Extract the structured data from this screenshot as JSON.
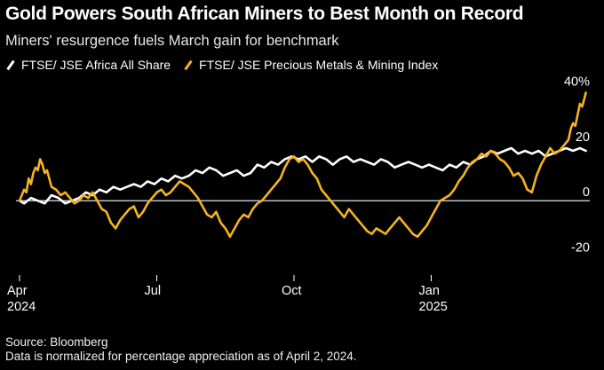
{
  "colors": {
    "background": "#000000",
    "all_share": "#ffffff",
    "precious_metals": "#f5b41e",
    "text": "#ffffff"
  },
  "header": {
    "title": "Gold Powers South African Miners to Best Month on Record",
    "subtitle": "Miners' resurgence fuels March gain for benchmark"
  },
  "footer": {
    "source": "Source: Bloomberg",
    "note": "Data is normalized for percentage appreciation as of April 2, 2024."
  },
  "chart_data": {
    "type": "line",
    "title": "Gold Powers South African Miners to Best Month on Record",
    "subtitle": "Miners' resurgence fuels March gain for benchmark",
    "xlabel": "",
    "ylabel": "",
    "x_range": [
      0,
      12
    ],
    "ylim": [
      -23,
      43
    ],
    "y_ticks": [
      {
        "value": 40,
        "label": "40%"
      },
      {
        "value": 20,
        "label": "20"
      },
      {
        "value": 0,
        "label": "0"
      },
      {
        "value": -20,
        "label": "-20"
      }
    ],
    "x_ticks": [
      {
        "value": 0,
        "label": "Apr",
        "sublabel": "2024"
      },
      {
        "value": 3,
        "label": "Jul",
        "sublabel": ""
      },
      {
        "value": 6,
        "label": "Oct",
        "sublabel": ""
      },
      {
        "value": 9,
        "label": "Jan",
        "sublabel": "2025"
      }
    ],
    "zero_line": true,
    "legend_position": "top-left",
    "series": [
      {
        "name": "FTSE/ JSE Africa All Share",
        "color": "#ffffff",
        "points": [
          [
            0.0,
            0
          ],
          [
            0.1,
            -1
          ],
          [
            0.25,
            1
          ],
          [
            0.4,
            0
          ],
          [
            0.55,
            -1
          ],
          [
            0.7,
            2
          ],
          [
            0.85,
            1
          ],
          [
            1.0,
            -1
          ],
          [
            1.15,
            0
          ],
          [
            1.3,
            1
          ],
          [
            1.45,
            3
          ],
          [
            1.6,
            2
          ],
          [
            1.75,
            4
          ],
          [
            1.9,
            3
          ],
          [
            2.05,
            5
          ],
          [
            2.2,
            4
          ],
          [
            2.35,
            5
          ],
          [
            2.5,
            6
          ],
          [
            2.65,
            5
          ],
          [
            2.8,
            7
          ],
          [
            2.95,
            6
          ],
          [
            3.1,
            8
          ],
          [
            3.25,
            7
          ],
          [
            3.4,
            9
          ],
          [
            3.55,
            8
          ],
          [
            3.7,
            9
          ],
          [
            3.85,
            11
          ],
          [
            4.0,
            10
          ],
          [
            4.15,
            12
          ],
          [
            4.3,
            11
          ],
          [
            4.45,
            9
          ],
          [
            4.6,
            10
          ],
          [
            4.75,
            11
          ],
          [
            4.9,
            9
          ],
          [
            5.05,
            10
          ],
          [
            5.2,
            13
          ],
          [
            5.35,
            12
          ],
          [
            5.5,
            14
          ],
          [
            5.65,
            13
          ],
          [
            5.8,
            15
          ],
          [
            5.95,
            16
          ],
          [
            6.1,
            15
          ],
          [
            6.25,
            16
          ],
          [
            6.4,
            14
          ],
          [
            6.55,
            16
          ],
          [
            6.7,
            15
          ],
          [
            6.85,
            13
          ],
          [
            7.0,
            15
          ],
          [
            7.15,
            16
          ],
          [
            7.3,
            14
          ],
          [
            7.45,
            15
          ],
          [
            7.6,
            14
          ],
          [
            7.75,
            13
          ],
          [
            7.9,
            15
          ],
          [
            8.05,
            14
          ],
          [
            8.2,
            12
          ],
          [
            8.35,
            13
          ],
          [
            8.5,
            14
          ],
          [
            8.65,
            13
          ],
          [
            8.8,
            12
          ],
          [
            8.95,
            13
          ],
          [
            9.1,
            12
          ],
          [
            9.25,
            11
          ],
          [
            9.4,
            13
          ],
          [
            9.55,
            12
          ],
          [
            9.7,
            14
          ],
          [
            9.85,
            13
          ],
          [
            10.0,
            15
          ],
          [
            10.15,
            16
          ],
          [
            10.3,
            18
          ],
          [
            10.45,
            17
          ],
          [
            10.6,
            18
          ],
          [
            10.75,
            19
          ],
          [
            10.9,
            17
          ],
          [
            11.05,
            18
          ],
          [
            11.2,
            17
          ],
          [
            11.35,
            18
          ],
          [
            11.5,
            16
          ],
          [
            11.65,
            17
          ],
          [
            11.8,
            18
          ],
          [
            11.95,
            19
          ],
          [
            12.1,
            18
          ],
          [
            12.25,
            19
          ],
          [
            12.38,
            18
          ]
        ]
      },
      {
        "name": "FTSE/ JSE Precious Metals & Mining Index",
        "color": "#f5b41e",
        "points": [
          [
            0.0,
            0
          ],
          [
            0.05,
            2
          ],
          [
            0.1,
            4
          ],
          [
            0.15,
            3
          ],
          [
            0.2,
            8
          ],
          [
            0.25,
            6
          ],
          [
            0.3,
            10
          ],
          [
            0.35,
            12
          ],
          [
            0.4,
            11
          ],
          [
            0.45,
            15
          ],
          [
            0.5,
            13
          ],
          [
            0.55,
            10
          ],
          [
            0.6,
            11
          ],
          [
            0.65,
            8
          ],
          [
            0.7,
            5
          ],
          [
            0.8,
            4
          ],
          [
            0.9,
            2
          ],
          [
            1.0,
            3
          ],
          [
            1.1,
            1
          ],
          [
            1.2,
            -1
          ],
          [
            1.3,
            0
          ],
          [
            1.4,
            2
          ],
          [
            1.5,
            1
          ],
          [
            1.6,
            3
          ],
          [
            1.7,
            0
          ],
          [
            1.8,
            -3
          ],
          [
            1.9,
            -4
          ],
          [
            2.0,
            -8
          ],
          [
            2.1,
            -10
          ],
          [
            2.2,
            -7
          ],
          [
            2.3,
            -5
          ],
          [
            2.4,
            -3
          ],
          [
            2.5,
            -2
          ],
          [
            2.6,
            -6
          ],
          [
            2.7,
            -4
          ],
          [
            2.8,
            -1
          ],
          [
            2.9,
            1
          ],
          [
            3.0,
            3
          ],
          [
            3.1,
            4
          ],
          [
            3.2,
            2
          ],
          [
            3.3,
            3
          ],
          [
            3.4,
            5
          ],
          [
            3.5,
            7
          ],
          [
            3.6,
            6
          ],
          [
            3.7,
            5
          ],
          [
            3.8,
            3
          ],
          [
            3.9,
            1
          ],
          [
            4.0,
            -2
          ],
          [
            4.1,
            -5
          ],
          [
            4.2,
            -6
          ],
          [
            4.3,
            -4
          ],
          [
            4.4,
            -8
          ],
          [
            4.5,
            -10
          ],
          [
            4.6,
            -13
          ],
          [
            4.7,
            -10
          ],
          [
            4.8,
            -7
          ],
          [
            4.9,
            -5
          ],
          [
            5.0,
            -6
          ],
          [
            5.1,
            -3
          ],
          [
            5.2,
            -1
          ],
          [
            5.3,
            0
          ],
          [
            5.4,
            2
          ],
          [
            5.5,
            4
          ],
          [
            5.6,
            6
          ],
          [
            5.7,
            8
          ],
          [
            5.8,
            12
          ],
          [
            5.9,
            15
          ],
          [
            6.0,
            16
          ],
          [
            6.1,
            14
          ],
          [
            6.2,
            15
          ],
          [
            6.3,
            13
          ],
          [
            6.4,
            10
          ],
          [
            6.5,
            8
          ],
          [
            6.6,
            4
          ],
          [
            6.7,
            2
          ],
          [
            6.8,
            0
          ],
          [
            6.9,
            -2
          ],
          [
            7.0,
            -4
          ],
          [
            7.1,
            -6
          ],
          [
            7.2,
            -3
          ],
          [
            7.3,
            -5
          ],
          [
            7.4,
            -7
          ],
          [
            7.5,
            -9
          ],
          [
            7.6,
            -11
          ],
          [
            7.7,
            -12
          ],
          [
            7.8,
            -10
          ],
          [
            7.9,
            -11
          ],
          [
            8.0,
            -12
          ],
          [
            8.1,
            -10
          ],
          [
            8.2,
            -8
          ],
          [
            8.3,
            -6
          ],
          [
            8.4,
            -8
          ],
          [
            8.5,
            -10
          ],
          [
            8.6,
            -12
          ],
          [
            8.7,
            -13
          ],
          [
            8.8,
            -11
          ],
          [
            8.9,
            -9
          ],
          [
            9.0,
            -6
          ],
          [
            9.1,
            -3
          ],
          [
            9.2,
            0
          ],
          [
            9.3,
            1
          ],
          [
            9.4,
            2
          ],
          [
            9.5,
            4
          ],
          [
            9.6,
            7
          ],
          [
            9.7,
            9
          ],
          [
            9.8,
            12
          ],
          [
            9.9,
            14
          ],
          [
            10.0,
            15
          ],
          [
            10.1,
            17
          ],
          [
            10.2,
            16
          ],
          [
            10.3,
            18
          ],
          [
            10.4,
            17
          ],
          [
            10.5,
            15
          ],
          [
            10.6,
            14
          ],
          [
            10.7,
            12
          ],
          [
            10.8,
            9
          ],
          [
            10.9,
            10
          ],
          [
            11.0,
            8
          ],
          [
            11.1,
            4
          ],
          [
            11.2,
            3
          ],
          [
            11.3,
            9
          ],
          [
            11.4,
            13
          ],
          [
            11.5,
            16
          ],
          [
            11.6,
            19
          ],
          [
            11.7,
            17
          ],
          [
            11.8,
            18
          ],
          [
            11.9,
            20
          ],
          [
            12.0,
            22
          ],
          [
            12.05,
            26
          ],
          [
            12.1,
            28
          ],
          [
            12.15,
            27
          ],
          [
            12.2,
            31
          ],
          [
            12.25,
            35
          ],
          [
            12.3,
            34
          ],
          [
            12.35,
            37
          ],
          [
            12.38,
            39
          ]
        ]
      }
    ]
  }
}
